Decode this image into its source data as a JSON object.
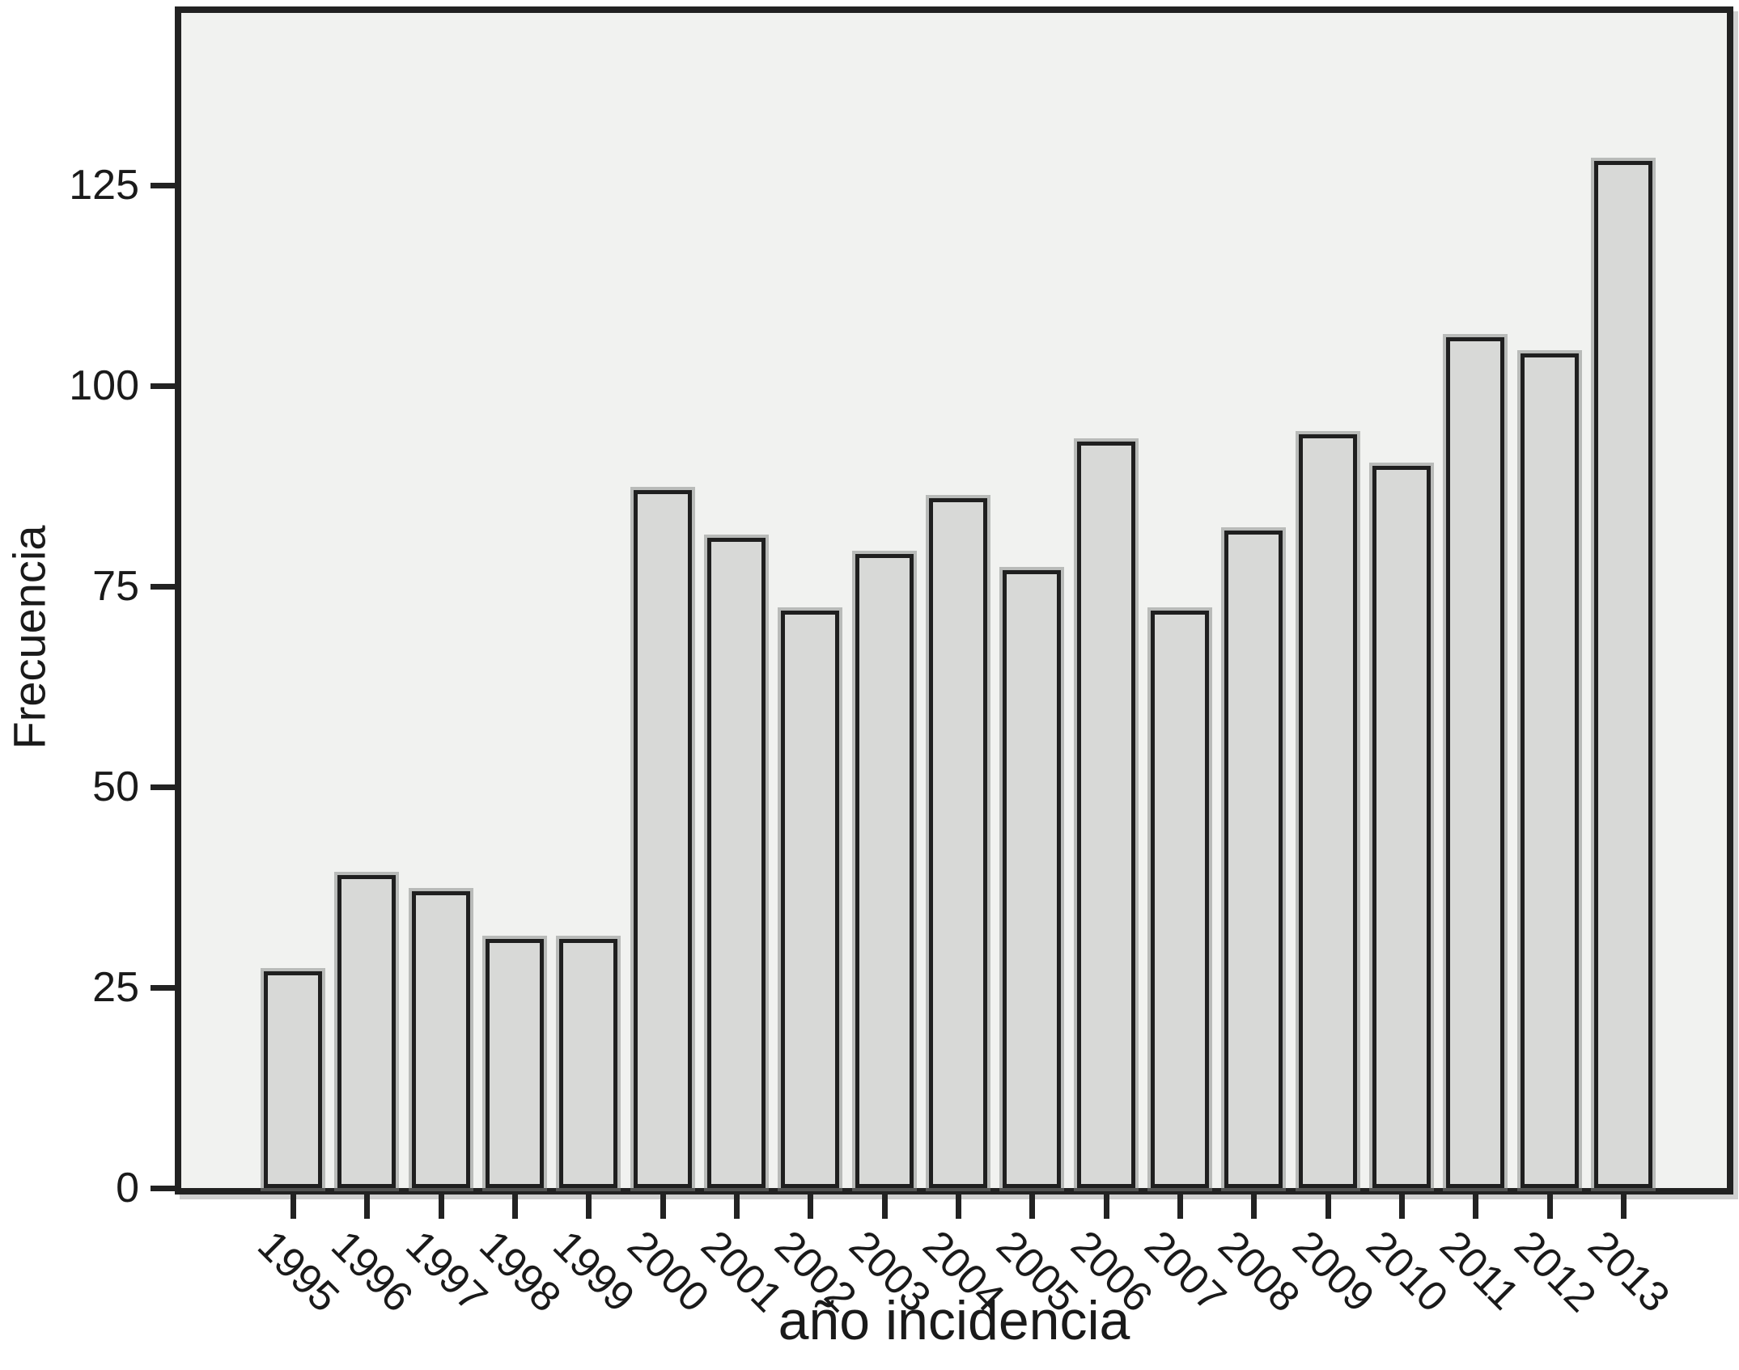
{
  "chart_data": {
    "type": "bar",
    "title": "",
    "xlabel": "año incidencia",
    "ylabel": "Frecuencia",
    "categories": [
      "1995",
      "1996",
      "1997",
      "1998",
      "1999",
      "2000",
      "2001",
      "2002",
      "2003",
      "2004",
      "2005",
      "2006",
      "2007",
      "2008",
      "2009",
      "2010",
      "2011",
      "2012",
      "2013"
    ],
    "values": [
      27,
      39,
      37,
      31,
      31,
      87,
      81,
      72,
      79,
      86,
      77,
      93,
      72,
      82,
      94,
      90,
      106,
      104,
      128
    ],
    "yticks": [
      0,
      25,
      50,
      75,
      100,
      125
    ],
    "ylim": [
      0,
      147
    ],
    "grid": false,
    "legend": false,
    "bar_orientation": "vertical",
    "x_tick_label_rotation_deg": 45,
    "colors": {
      "canvas_bg": "#ffffff",
      "plot_bg": "#f1f2f0",
      "bar_fill": "#d8d9d7",
      "bar_border": "#1f1f1f",
      "bar_shadow": "#9e9f9e",
      "axis": "#222222",
      "text": "#1a1a1a"
    }
  }
}
